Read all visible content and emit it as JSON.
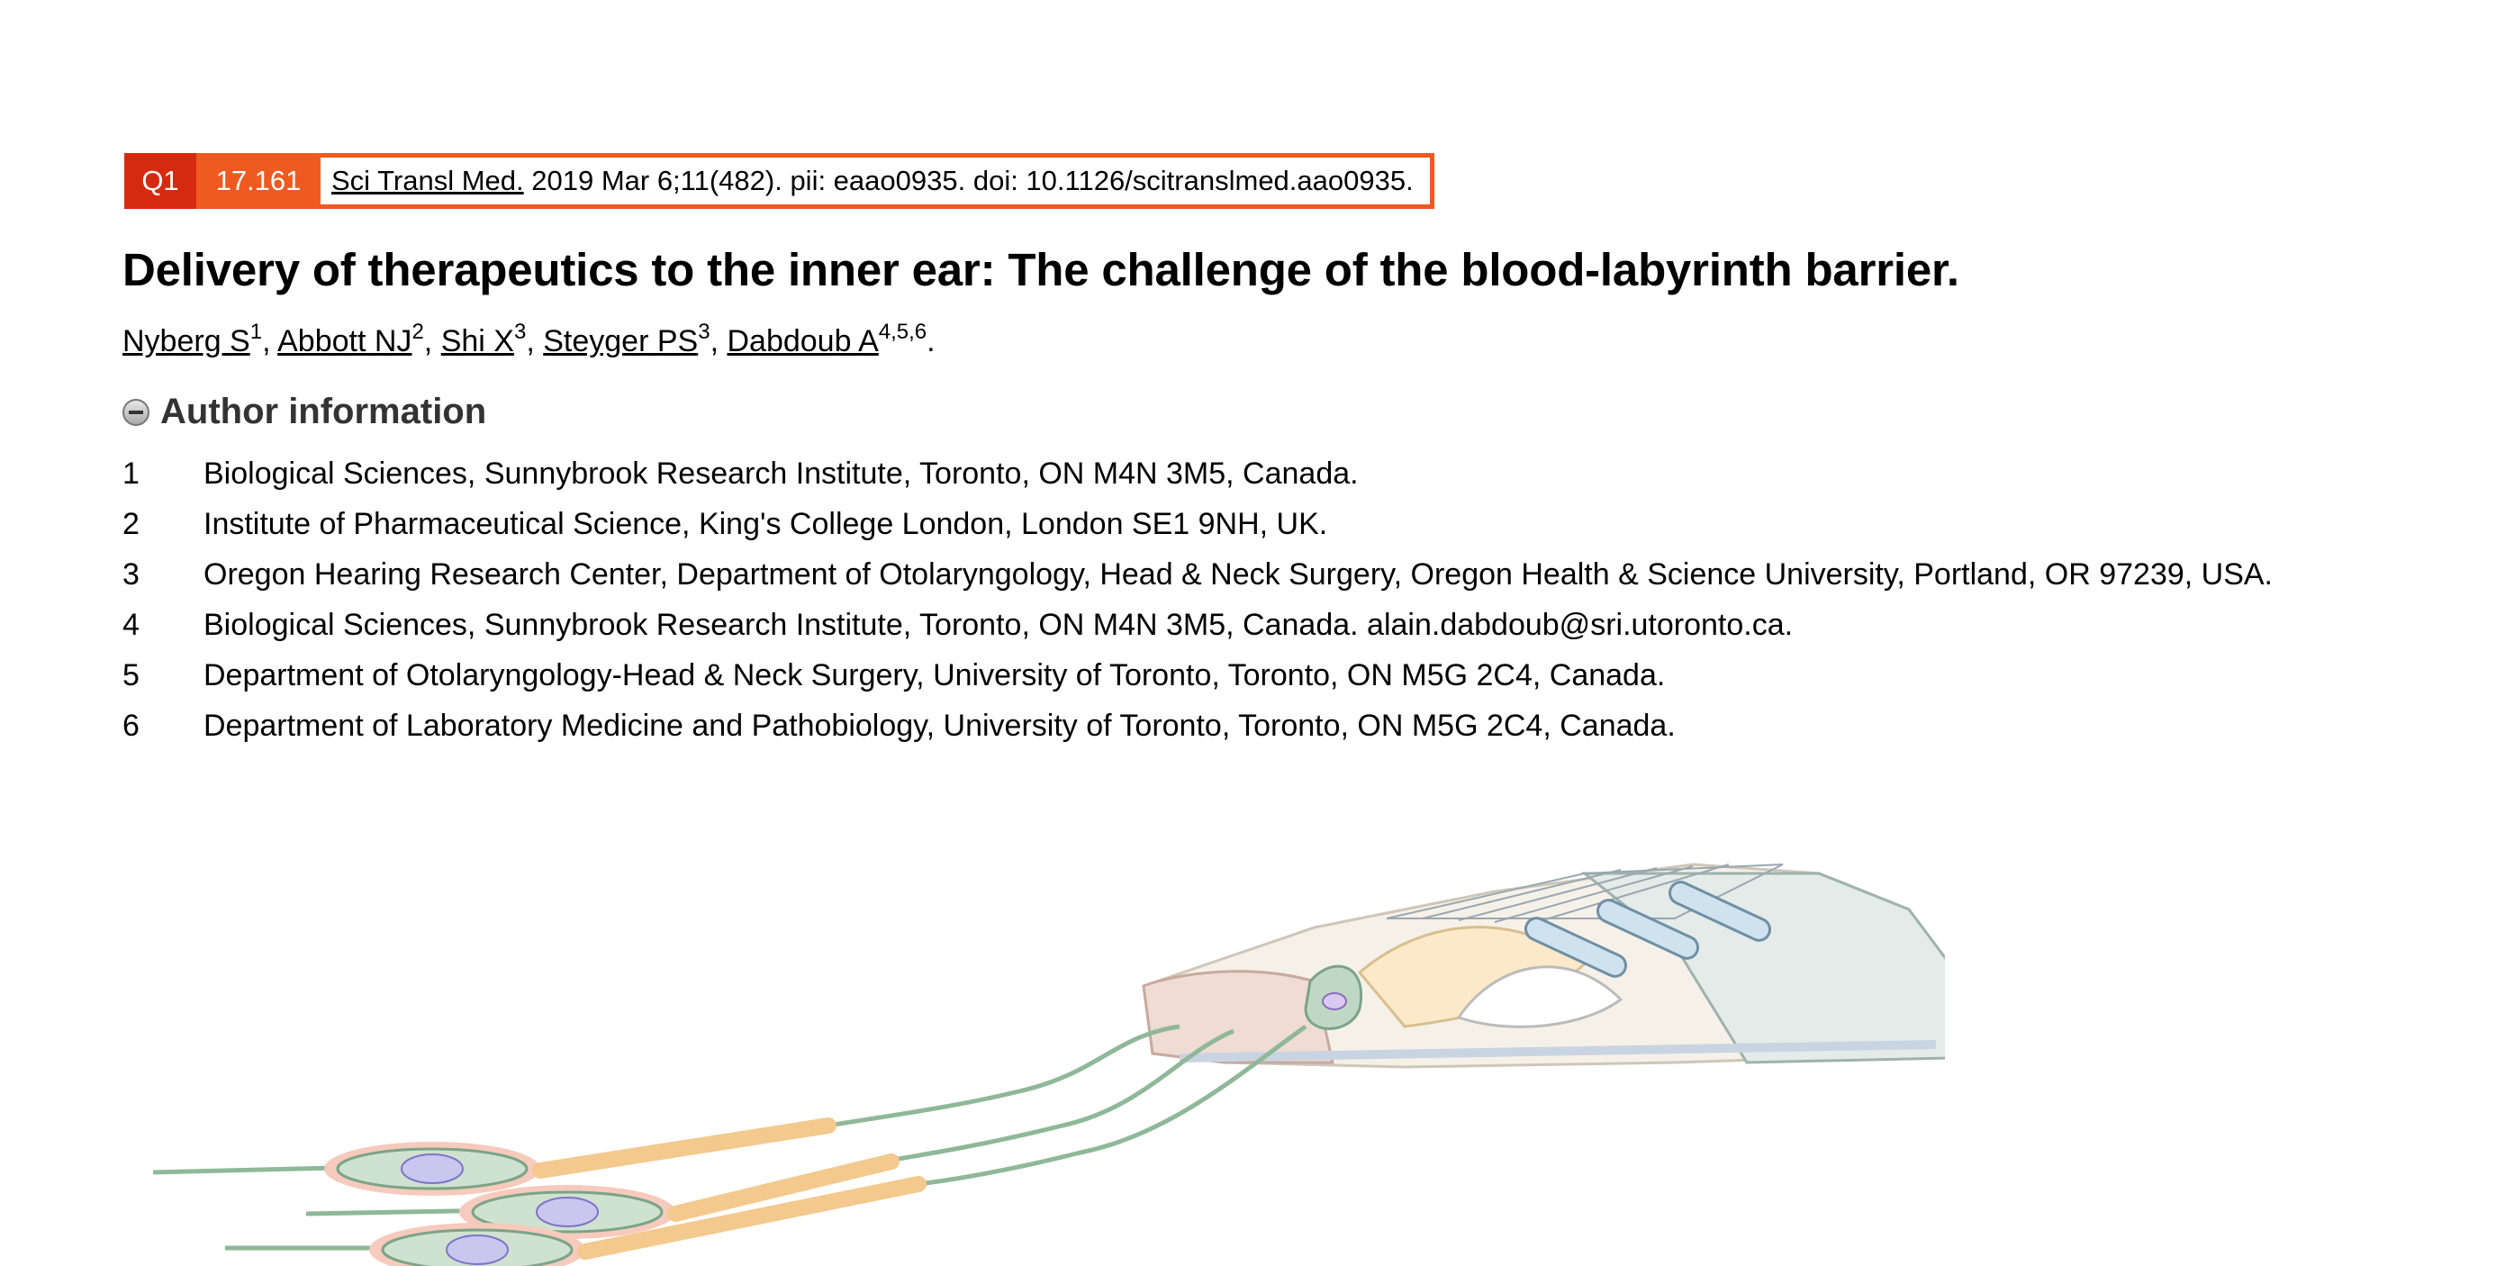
{
  "citation": {
    "quartile": "Q1",
    "impact_factor": "17.161",
    "journal": "Sci Transl Med.",
    "details": " 2019 Mar 6;11(482). pii: eaao0935. doi: 10.1126/scitranslmed.aao0935."
  },
  "title": "Delivery of therapeutics to the inner ear: The challenge of the blood-labyrinth barrier.",
  "authors": [
    {
      "name": "Nyberg S",
      "sup": "1",
      "sep": ", "
    },
    {
      "name": "Abbott NJ",
      "sup": "2",
      "sep": ", "
    },
    {
      "name": "Shi X",
      "sup": "3",
      "sep": ", "
    },
    {
      "name": "Steyger PS",
      "sup": "3",
      "sep": ", "
    },
    {
      "name": "Dabdoub A",
      "sup": "4,5,6",
      "sep": "."
    }
  ],
  "author_info_heading": "Author information",
  "affiliations": [
    {
      "num": "1",
      "text": "Biological Sciences, Sunnybrook Research Institute, Toronto, ON M4N 3M5, Canada."
    },
    {
      "num": "2",
      "text": "Institute of Pharmaceutical Science, King's College London, London SE1 9NH, UK."
    },
    {
      "num": "3",
      "text": "Oregon Hearing Research Center, Department of Otolaryngology, Head & Neck Surgery, Oregon Health & Science University, Portland, OR 97239, USA."
    },
    {
      "num": "4",
      "text": "Biological Sciences, Sunnybrook Research Institute, Toronto, ON M4N 3M5, Canada. alain.dabdoub@sri.utoronto.ca."
    },
    {
      "num": "5",
      "text": "Department of Otolaryngology-Head & Neck Surgery, University of Toronto, Toronto, ON M5G 2C4, Canada."
    },
    {
      "num": "6",
      "text": "Department of Laboratory Medicine and Pathobiology, University of Toronto, Toronto, ON M5G 2C4, Canada."
    }
  ],
  "colors": {
    "quartile_badge": "#d62a10",
    "impact_badge": "#ee5a20"
  }
}
